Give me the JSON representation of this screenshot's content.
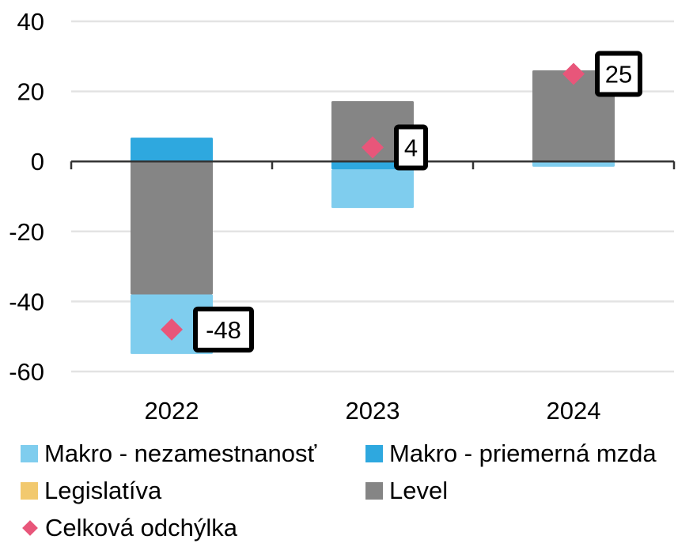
{
  "chart_data": {
    "type": "bar",
    "stacked": true,
    "title": "",
    "xlabel": "",
    "ylabel": "",
    "categories": [
      "2022",
      "2023",
      "2024"
    ],
    "ylim": [
      -60,
      40
    ],
    "yticks": [
      40,
      20,
      0,
      -20,
      -40,
      -60
    ],
    "grid": true,
    "series": [
      {
        "name": "Makro - nezamestnanosť",
        "color": "#7FCDEE",
        "values": [
          -17,
          -11,
          -1.5
        ]
      },
      {
        "name": "Makro - priemerná mzda",
        "color": "#2EA8DF",
        "values": [
          6.8,
          -2.3,
          0
        ]
      },
      {
        "name": "Legislatíva",
        "color": "#F2C96E",
        "values": [
          0,
          0,
          0
        ]
      },
      {
        "name": "Level",
        "color": "#858585",
        "values": [
          -38,
          17.2,
          26
        ]
      }
    ],
    "markers": {
      "name": "Celková odchýlka",
      "color": "#E8567A",
      "shape": "diamond",
      "values": [
        -48,
        4,
        25
      ],
      "labels": [
        "-48",
        "4",
        "25"
      ]
    },
    "legend_position": "bottom"
  }
}
